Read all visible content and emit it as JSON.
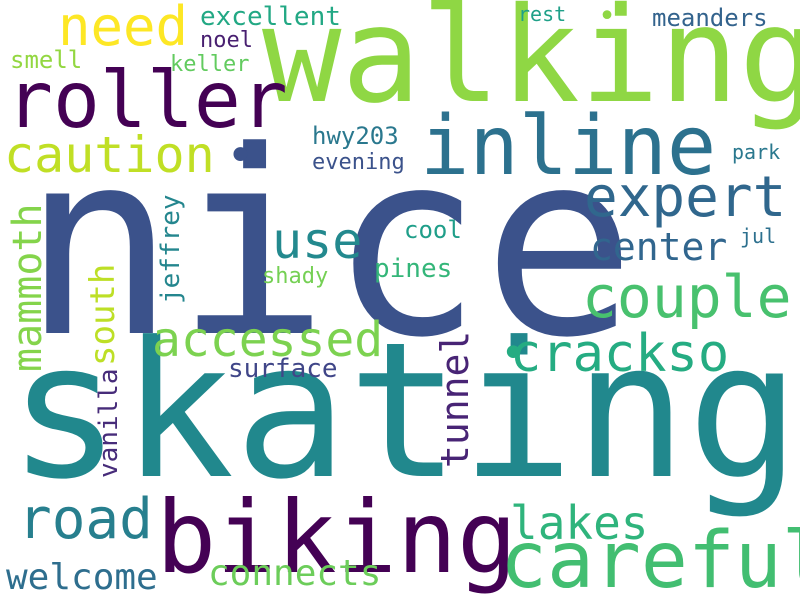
{
  "words": [
    {
      "text": "nice",
      "color": "#3b528b"
    },
    {
      "text": "skating",
      "color": "#21888d"
    },
    {
      "text": "walking",
      "color": "#8fd744"
    },
    {
      "text": "inline",
      "color": "#2c718e"
    },
    {
      "text": "roller",
      "color": "#440154"
    },
    {
      "text": "biking",
      "color": "#440154"
    },
    {
      "text": "careful",
      "color": "#42be71"
    },
    {
      "text": "need",
      "color": "#fde725"
    },
    {
      "text": "caution",
      "color": "#c0df25"
    },
    {
      "text": "expert",
      "color": "#30678d"
    },
    {
      "text": "couple",
      "color": "#48c16e"
    },
    {
      "text": "crackso",
      "color": "#25ac82"
    },
    {
      "text": "accessed",
      "color": "#7cd250"
    },
    {
      "text": "road",
      "color": "#277f8e"
    },
    {
      "text": "lakes",
      "color": "#2fb47c"
    },
    {
      "text": "center",
      "color": "#31668e"
    },
    {
      "text": "use",
      "color": "#23898e"
    },
    {
      "text": "mammoth",
      "color": "#84d44b"
    },
    {
      "text": "south",
      "color": "#bddf26"
    },
    {
      "text": "tunnel",
      "color": "#482475"
    },
    {
      "text": "welcome",
      "color": "#2e6e8e"
    },
    {
      "text": "connects",
      "color": "#6ccd5a"
    },
    {
      "text": "excellent",
      "color": "#22a884"
    },
    {
      "text": "meanders",
      "color": "#33638d"
    },
    {
      "text": "noel",
      "color": "#481f70"
    },
    {
      "text": "keller",
      "color": "#62cb5f"
    },
    {
      "text": "smell",
      "color": "#93d741"
    },
    {
      "text": "hwy203",
      "color": "#2a788e"
    },
    {
      "text": "evening",
      "color": "#3b528b"
    },
    {
      "text": "park",
      "color": "#2a788e"
    },
    {
      "text": "rest",
      "color": "#1fa088"
    },
    {
      "text": "cool",
      "color": "#1f9e89"
    },
    {
      "text": "jul",
      "color": "#2d708e"
    },
    {
      "text": "pines",
      "color": "#34b679"
    },
    {
      "text": "shady",
      "color": "#75d054"
    },
    {
      "text": "jeffrey",
      "color": "#24868e"
    },
    {
      "text": "surface",
      "color": "#404688"
    },
    {
      "text": "vanilla",
      "color": "#472c7a"
    }
  ]
}
